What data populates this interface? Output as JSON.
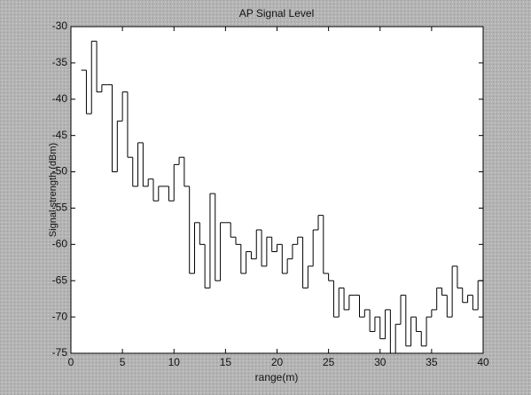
{
  "chart_data": {
    "type": "line",
    "drawstyle": "steps-post",
    "title": "AP Signal Level",
    "xlabel": "range(m)",
    "ylabel": "Signal strength (dBm)",
    "color": "#000000",
    "xlim": [
      0,
      40
    ],
    "xticks": [
      0,
      5,
      10,
      15,
      20,
      25,
      30,
      35,
      40
    ],
    "ylim": [
      -75,
      -30
    ],
    "yticks": [
      -30,
      -35,
      -40,
      -45,
      -50,
      -55,
      -60,
      -65,
      -70,
      -75
    ],
    "x": [
      1.0,
      1.5,
      2.0,
      2.5,
      3.0,
      3.5,
      4.0,
      4.5,
      5.0,
      5.5,
      6.0,
      6.5,
      7.0,
      7.5,
      8.0,
      8.5,
      9.0,
      9.5,
      10.0,
      10.5,
      11.0,
      11.5,
      12.0,
      12.5,
      13.0,
      13.5,
      14.0,
      14.5,
      15.0,
      15.5,
      16.0,
      16.5,
      17.0,
      17.5,
      18.0,
      18.5,
      19.0,
      19.5,
      20.0,
      20.5,
      21.0,
      21.5,
      22.0,
      22.5,
      23.0,
      23.5,
      24.0,
      24.5,
      25.0,
      25.5,
      26.0,
      26.5,
      27.0,
      27.5,
      28.0,
      28.5,
      29.0,
      29.5,
      30.0,
      30.5,
      31.0,
      31.5,
      32.0,
      32.5,
      33.0,
      33.5,
      34.0,
      34.5,
      35.0,
      35.5,
      36.0,
      36.5,
      37.0,
      37.5,
      38.0,
      38.5,
      39.0,
      39.5,
      40.0
    ],
    "values": [
      -36,
      -42,
      -32,
      -39,
      -38,
      -38,
      -50,
      -43,
      -39,
      -48,
      -52,
      -46,
      -52,
      -51,
      -54,
      -52,
      -52,
      -54,
      -49,
      -48,
      -52,
      -64,
      -57,
      -60,
      -66,
      -53,
      -65,
      -57,
      -57,
      -59,
      -60,
      -64,
      -61,
      -62,
      -58,
      -63,
      -59,
      -61,
      -60,
      -64,
      -62,
      -60,
      -59,
      -66,
      -63,
      -58,
      -56,
      -64,
      -65,
      -70,
      -66,
      -69,
      -67,
      -67,
      -70,
      -69,
      -72,
      -70,
      -73,
      -69,
      -75,
      -71,
      -67,
      -74,
      -70,
      -72,
      -74,
      -70,
      -69,
      -66,
      -67,
      -70,
      -63,
      -66,
      -68,
      -67,
      -69,
      -65,
      -66
    ]
  }
}
